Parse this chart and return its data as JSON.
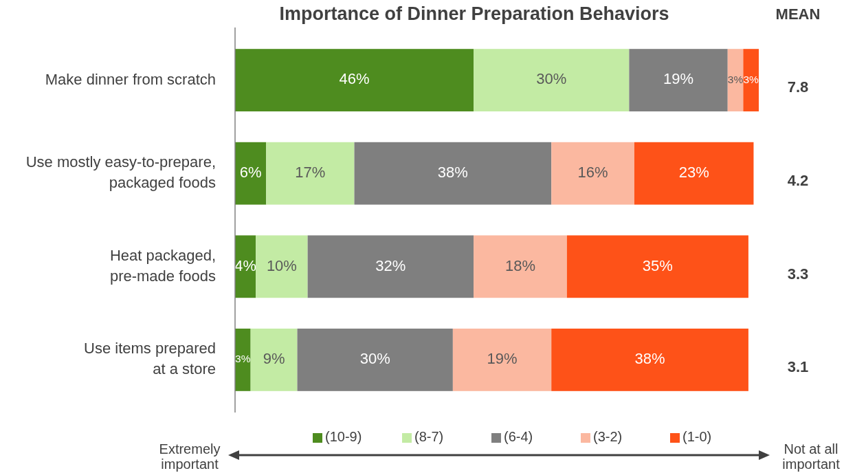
{
  "chart_data": {
    "type": "bar",
    "orientation": "horizontal",
    "stacked": true,
    "title": "Importance of Dinner Preparation Behaviors",
    "categories": [
      "Make dinner from scratch",
      "Use mostly easy-to-prepare,\npackaged foods",
      "Heat packaged,\npre-made foods",
      "Use items prepared\nat a store"
    ],
    "series": [
      {
        "name": "(10-9)",
        "color": "#4e8c1f",
        "values": [
          46,
          6,
          4,
          3
        ],
        "value_labels": [
          "46%",
          "6%",
          "4%",
          "3%"
        ]
      },
      {
        "name": "(8-7)",
        "color": "#c3eba4",
        "values": [
          30,
          17,
          10,
          9
        ],
        "value_labels": [
          "30%",
          "17%",
          "10%",
          "9%"
        ]
      },
      {
        "name": "(6-4)",
        "color": "#7f7f7f",
        "values": [
          19,
          38,
          32,
          30
        ],
        "value_labels": [
          "19%",
          "38%",
          "32%",
          "30%"
        ]
      },
      {
        "name": "(3-2)",
        "color": "#fbb8a0",
        "values": [
          3,
          16,
          18,
          19
        ],
        "value_labels": [
          "3%",
          "16%",
          "18%",
          "19%"
        ]
      },
      {
        "name": "(1-0)",
        "color": "#fe5218",
        "values": [
          3,
          23,
          35,
          38
        ],
        "value_labels": [
          "3%",
          "23%",
          "35%",
          "38%"
        ]
      }
    ],
    "legend": "bottom",
    "annotations": [
      "MEAN",
      "7.8",
      "4.2",
      "3.3",
      "3.1",
      "Extremely\nimportant",
      "Not at all\nimportant"
    ]
  }
}
